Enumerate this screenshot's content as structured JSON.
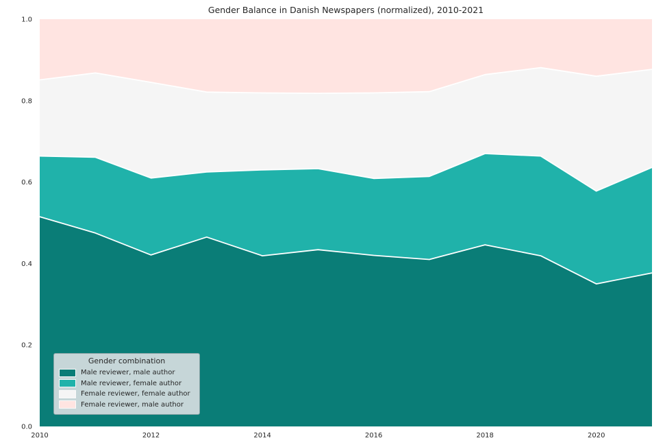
{
  "title": "Gender Balance in Danish Newspapers (normalized), 2010-2021",
  "legend": {
    "title": "Gender combination",
    "position": "lower left",
    "items": [
      {
        "label": "Male reviewer, male author",
        "color": "#0a7d77"
      },
      {
        "label": "Male reviewer, female author",
        "color": "#20b2aa"
      },
      {
        "label": "Female reviewer, female author",
        "color": "#f5f5f5"
      },
      {
        "label": "Female reviewer, male author",
        "color": "#ffe4e1"
      }
    ]
  },
  "chart_data": {
    "type": "area",
    "stacked": true,
    "normalized": true,
    "title": "Gender Balance in Danish Newspapers (normalized), 2010-2021",
    "x": [
      2010,
      2011,
      2012,
      2013,
      2014,
      2015,
      2016,
      2017,
      2018,
      2019,
      2020,
      2021
    ],
    "series": [
      {
        "name": "Male reviewer, male author",
        "color": "#0a7d77",
        "values": [
          0.515,
          0.475,
          0.421,
          0.465,
          0.419,
          0.434,
          0.42,
          0.41,
          0.446,
          0.419,
          0.35,
          0.377
        ]
      },
      {
        "name": "Male reviewer, female author",
        "color": "#20b2aa",
        "values": [
          0.149,
          0.186,
          0.189,
          0.16,
          0.211,
          0.199,
          0.189,
          0.204,
          0.224,
          0.245,
          0.228,
          0.259
        ]
      },
      {
        "name": "Female reviewer, female author",
        "color": "#f5f5f5",
        "values": [
          0.187,
          0.207,
          0.235,
          0.196,
          0.189,
          0.185,
          0.21,
          0.208,
          0.194,
          0.217,
          0.282,
          0.241
        ]
      },
      {
        "name": "Female reviewer, male author",
        "color": "#ffe4e1",
        "values": [
          0.149,
          0.132,
          0.155,
          0.179,
          0.181,
          0.182,
          0.181,
          0.178,
          0.136,
          0.119,
          0.14,
          0.123
        ]
      }
    ],
    "xticks": [
      2010,
      2012,
      2014,
      2016,
      2018,
      2020
    ],
    "yticks": [
      0.0,
      0.2,
      0.4,
      0.6,
      0.8,
      1.0
    ],
    "xlim": [
      2010,
      2021
    ],
    "ylim": [
      0.0,
      1.0
    ],
    "grid": false,
    "edge_color": "#ffffff",
    "legend_position": "lower left"
  }
}
